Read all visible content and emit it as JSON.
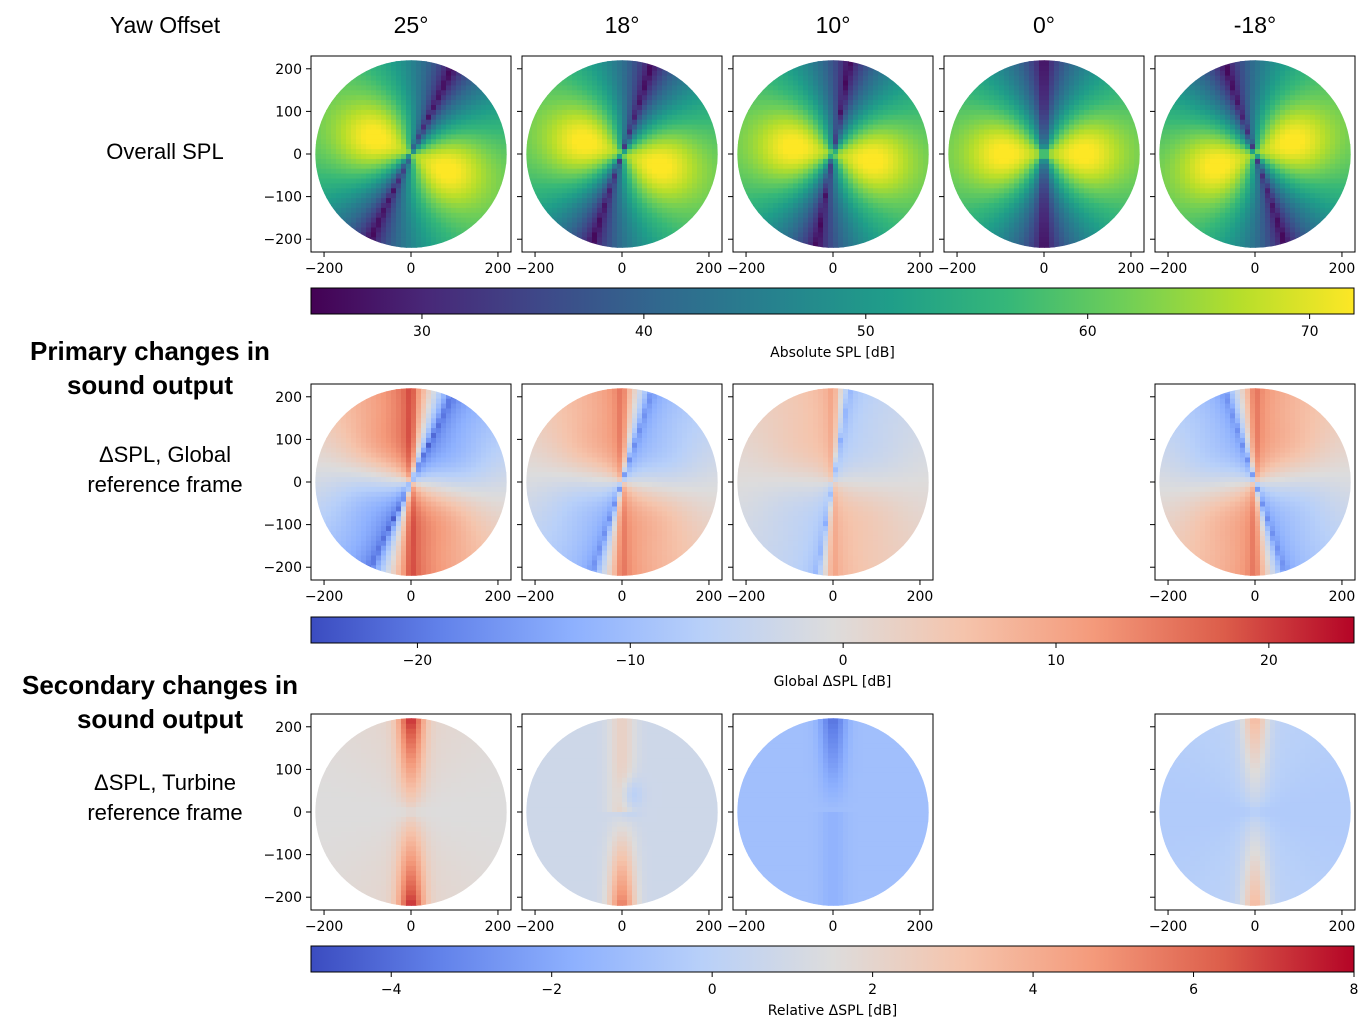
{
  "chart_data": {
    "type": "heatmap",
    "column_header_label": "Yaw Offset",
    "columns": [
      "25°",
      "18°",
      "10°",
      "0°",
      "-18°"
    ],
    "axis": {
      "xlim": [
        -230,
        230
      ],
      "ylim": [
        -230,
        230
      ],
      "xticks": [
        -200,
        0,
        200
      ],
      "yticks": [
        200,
        100,
        0,
        -100,
        -200
      ]
    },
    "rows": [
      {
        "heading": "",
        "row_label": [
          "Overall SPL"
        ],
        "panels_shown": [
          true,
          true,
          true,
          true,
          true
        ],
        "colormap": "viridis",
        "colorbar": {
          "label": "Absolute SPL [dB]",
          "range": [
            25,
            72
          ],
          "ticks": [
            30,
            40,
            50,
            60,
            70
          ]
        }
      },
      {
        "heading": [
          "Primary changes in",
          "sound output"
        ],
        "row_label": [
          "ΔSPL, Global",
          "reference frame"
        ],
        "panels_shown": [
          true,
          true,
          true,
          false,
          true
        ],
        "colormap": "coolwarm",
        "colorbar": {
          "label": "Global ΔSPL [dB]",
          "range": [
            -25,
            24
          ],
          "ticks": [
            -20,
            -10,
            0,
            10,
            20
          ]
        }
      },
      {
        "heading": [
          "Secondary changes in",
          "sound output"
        ],
        "row_label": [
          "ΔSPL, Turbine",
          "reference frame"
        ],
        "panels_shown": [
          true,
          true,
          true,
          false,
          true
        ],
        "colormap": "coolwarm",
        "colorbar": {
          "label": "Relative ΔSPL [dB]",
          "range": [
            -5,
            8
          ],
          "ticks": [
            -4,
            -2,
            0,
            2,
            4,
            6,
            8
          ]
        }
      }
    ]
  }
}
